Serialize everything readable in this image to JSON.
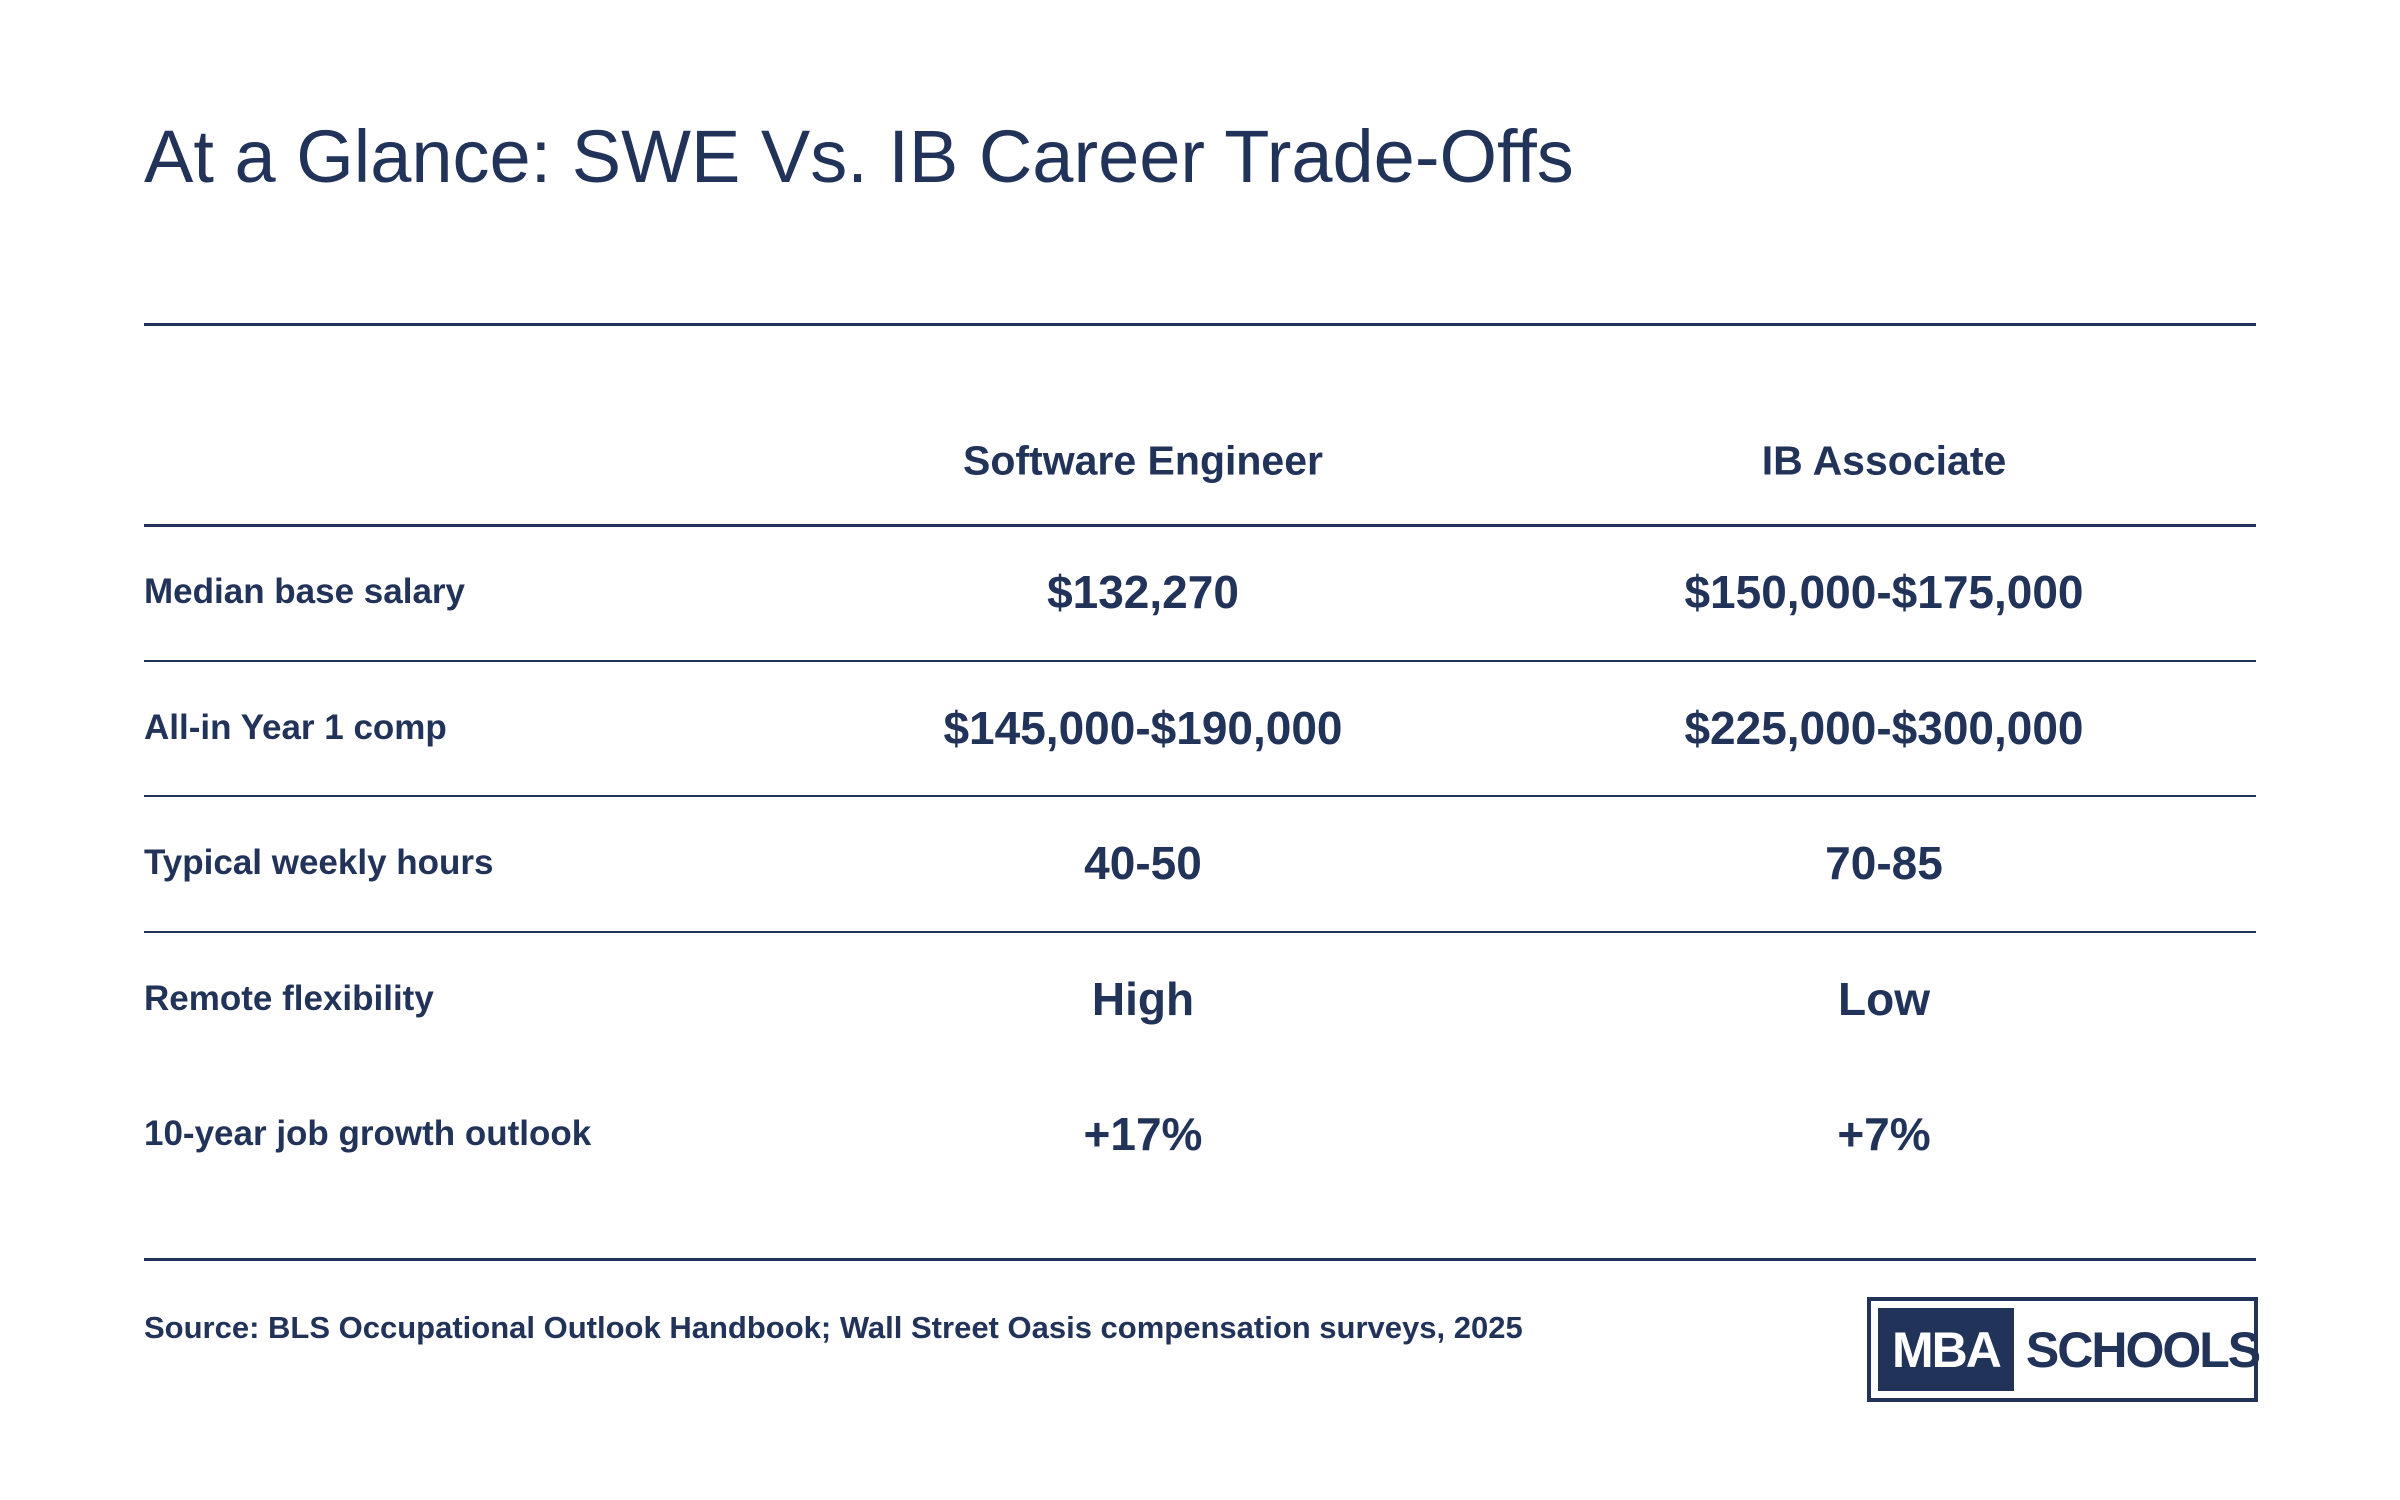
{
  "header": {
    "title": "At a Glance: SWE Vs. IB Career Trade-Offs"
  },
  "table": {
    "columns": [
      "Software Engineer",
      "IB Associate"
    ],
    "rows": [
      [
        "Median base salary",
        "$132,270",
        "$150,000-$175,000"
      ],
      [
        "All-in Year 1 comp",
        "$145,000-$190,000",
        "$225,000-$300,000"
      ],
      [
        "Typical weekly hours",
        "40-50",
        "70-85"
      ],
      [
        "Remote flexibility",
        "High",
        "Low"
      ],
      [
        "10-year job growth outlook",
        "+17%",
        "+7%"
      ]
    ]
  },
  "footer": {
    "source": "Source: BLS Occupational Outlook Handbook; Wall Street Oasis compensation surveys, 2025",
    "logo": [
      "MBA",
      "SCHOOLS"
    ]
  }
}
